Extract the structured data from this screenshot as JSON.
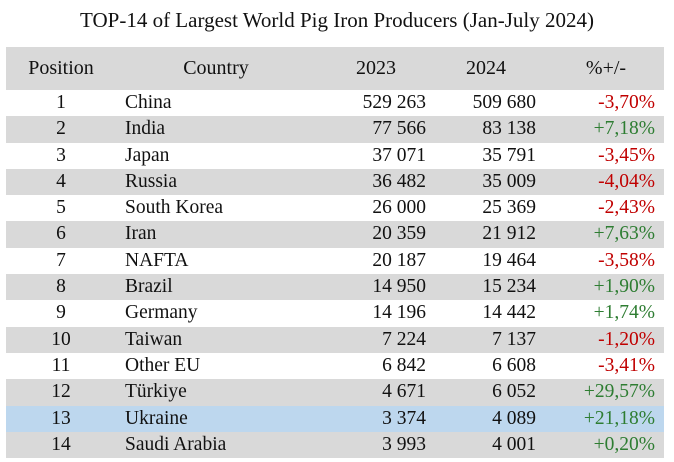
{
  "title": "TOP-14 of Largest World Pig Iron Producers (Jan-July 2024)",
  "headers": {
    "position": "Position",
    "country": "Country",
    "y2023": "2023",
    "y2024": "2024",
    "change": "%+/-"
  },
  "colors": {
    "header_bg": "#d9d9d9",
    "stripe_bg": "#d9d9d9",
    "highlight_bg": "#bdd7ee",
    "negative": "#c00000",
    "positive": "#2e7d32"
  },
  "rows": [
    {
      "position": "1",
      "country": "China",
      "y2023": "529 263",
      "y2024": "509 680",
      "change": "-3,70%"
    },
    {
      "position": "2",
      "country": "India",
      "y2023": "77 566",
      "y2024": "83 138",
      "change": "+7,18%"
    },
    {
      "position": "3",
      "country": "Japan",
      "y2023": "37 071",
      "y2024": "35 791",
      "change": "-3,45%"
    },
    {
      "position": "4",
      "country": "Russia",
      "y2023": "36 482",
      "y2024": "35 009",
      "change": "-4,04%"
    },
    {
      "position": "5",
      "country": "South Korea",
      "y2023": "26 000",
      "y2024": "25 369",
      "change": "-2,43%"
    },
    {
      "position": "6",
      "country": "Iran",
      "y2023": "20 359",
      "y2024": "21 912",
      "change": "+7,63%"
    },
    {
      "position": "7",
      "country": "NAFTA",
      "y2023": "20 187",
      "y2024": "19 464",
      "change": "-3,58%"
    },
    {
      "position": "8",
      "country": "Brazil",
      "y2023": "14 950",
      "y2024": "15 234",
      "change": "+1,90%"
    },
    {
      "position": "9",
      "country": "Germany",
      "y2023": "14 196",
      "y2024": "14 442",
      "change": "+1,74%"
    },
    {
      "position": "10",
      "country": "Taiwan",
      "y2023": "7 224",
      "y2024": "7 137",
      "change": "-1,20%"
    },
    {
      "position": "11",
      "country": "Other EU",
      "y2023": "6 842",
      "y2024": "6 608",
      "change": "-3,41%"
    },
    {
      "position": "12",
      "country": "Türkiye",
      "y2023": "4 671",
      "y2024": "6 052",
      "change": "+29,57%"
    },
    {
      "position": "13",
      "country": "Ukraine",
      "y2023": "3 374",
      "y2024": "4 089",
      "change": "+21,18%"
    },
    {
      "position": "14",
      "country": "Saudi Arabia",
      "y2023": "3 993",
      "y2024": "4 001",
      "change": "+0,20%"
    }
  ]
}
